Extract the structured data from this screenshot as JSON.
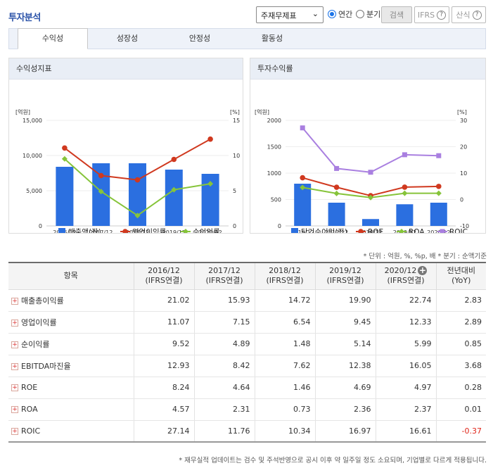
{
  "header": {
    "title": "투자분석",
    "statement_select": "주재무제표",
    "radio_annual": "연간",
    "radio_quarter": "분기",
    "search_button": "검색",
    "ifrs_button": "IFRS",
    "formula_button": "산식",
    "help_symbol": "?"
  },
  "tabs": [
    "수익성",
    "성장성",
    "안정성",
    "활동성"
  ],
  "colors": {
    "blue": "#2b6fe0",
    "red": "#d0391f",
    "green": "#86c43a",
    "purple": "#a97fe0"
  },
  "chart_data": [
    {
      "type": "bar+line",
      "title": "수익성지표",
      "left_unit": "[억원]",
      "right_unit": "[%]",
      "categories": [
        "2016/12",
        "2017/12",
        "2018/12",
        "2019/12",
        "2020/12"
      ],
      "ylim_left": [
        0,
        15000
      ],
      "left_ticks": [
        "15,000",
        "10,000",
        "5,000",
        "0"
      ],
      "ylim_right": [
        0,
        15
      ],
      "right_ticks": [
        "15",
        "10",
        "5",
        "0"
      ],
      "bar_series": {
        "name": "매출액(좌)",
        "values": [
          8400,
          8900,
          8900,
          8000,
          7400
        ]
      },
      "line_series": [
        {
          "name": "영업이익률",
          "values": [
            11.07,
            7.15,
            6.54,
            9.45,
            12.33
          ]
        },
        {
          "name": "순이익률",
          "values": [
            9.52,
            4.89,
            1.48,
            5.14,
            5.99
          ]
        }
      ]
    },
    {
      "type": "bar+line",
      "title": "투자수익률",
      "left_unit": "[억원]",
      "right_unit": "[%]",
      "categories": [
        "2016/12",
        "2017/12",
        "2018/12",
        "2019/12",
        "2020/12"
      ],
      "ylim_left": [
        0,
        2000
      ],
      "left_ticks": [
        "2000",
        "1500",
        "1000",
        "500",
        "0"
      ],
      "ylim_right": [
        -10,
        30
      ],
      "right_ticks": [
        "30",
        "20",
        "10",
        "0",
        "-10"
      ],
      "bar_series": {
        "name": "당기순이익(좌)",
        "values": [
          800,
          440,
          130,
          410,
          440
        ]
      },
      "line_series": [
        {
          "name": "ROE",
          "values": [
            8.24,
            4.64,
            1.46,
            4.69,
            4.97
          ]
        },
        {
          "name": "ROA",
          "values": [
            4.57,
            2.31,
            0.73,
            2.36,
            2.37
          ]
        },
        {
          "name": "ROIC",
          "values": [
            27.14,
            11.76,
            10.34,
            16.97,
            16.61
          ]
        }
      ]
    }
  ],
  "unit_note": "* 단위 : 억원, %, %p, 배   * 분기 : 순액기준",
  "table": {
    "headers": [
      {
        "label": "항목"
      },
      {
        "l1": "2016/12",
        "l2": "(IFRS연결)"
      },
      {
        "l1": "2017/12",
        "l2": "(IFRS연결)"
      },
      {
        "l1": "2018/12",
        "l2": "(IFRS연결)"
      },
      {
        "l1": "2019/12",
        "l2": "(IFRS연결)"
      },
      {
        "l1": "2020/12",
        "l2": "(IFRS연결)"
      },
      {
        "l1": "전년대비",
        "l2": "(YoY)"
      }
    ],
    "expand_symbol": "+",
    "add_symbol": "+",
    "rows": [
      {
        "label": "매출총이익률",
        "values": [
          "21.02",
          "15.93",
          "14.72",
          "19.90",
          "22.74",
          "2.83"
        ]
      },
      {
        "label": "영업이익률",
        "values": [
          "11.07",
          "7.15",
          "6.54",
          "9.45",
          "12.33",
          "2.89"
        ]
      },
      {
        "label": "순이익률",
        "values": [
          "9.52",
          "4.89",
          "1.48",
          "5.14",
          "5.99",
          "0.85"
        ]
      },
      {
        "label": "EBITDA마진율",
        "values": [
          "12.93",
          "8.42",
          "7.62",
          "12.38",
          "16.05",
          "3.68"
        ]
      },
      {
        "label": "ROE",
        "values": [
          "8.24",
          "4.64",
          "1.46",
          "4.69",
          "4.97",
          "0.28"
        ]
      },
      {
        "label": "ROA",
        "values": [
          "4.57",
          "2.31",
          "0.73",
          "2.36",
          "2.37",
          "0.01"
        ]
      },
      {
        "label": "ROIC",
        "values": [
          "27.14",
          "11.76",
          "10.34",
          "16.97",
          "16.61",
          "-0.37"
        ]
      }
    ]
  },
  "footer_note": "* 재무실적 업데이트는 검수 및 주석반영으로 공시 이후 약 일주일 정도 소요되며, 기업별로 다르게 적용됩니다."
}
